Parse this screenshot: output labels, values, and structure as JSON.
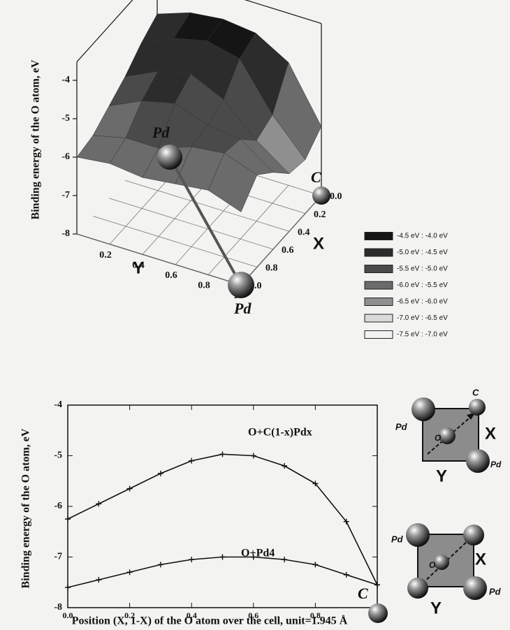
{
  "chart_data": [
    {
      "type": "surface3d",
      "zlabel": "Binding energy of the  O atom, eV",
      "xlabel": "X",
      "ylabel": "Y",
      "xlim": [
        0,
        1
      ],
      "ylim": [
        0,
        1
      ],
      "zlim": [
        -8,
        -4
      ],
      "xticks": [
        {
          "value": 0,
          "label": "0.0"
        },
        0.2,
        0.4,
        0.6,
        0.8,
        {
          "value": 1,
          "label": "1.0"
        }
      ],
      "yticks": [
        0.2,
        0.4,
        0.6,
        0.8,
        {
          "value": 1,
          "label": "1."
        }
      ],
      "zticks": [
        -4,
        -5,
        -6,
        -7,
        -8
      ],
      "grid": true,
      "x": [
        0,
        0.2,
        0.4,
        0.6,
        0.8,
        1
      ],
      "y": [
        0,
        0.2,
        0.4,
        0.6,
        0.8,
        1
      ],
      "z": [
        [
          -4.6,
          -4.3,
          -4.2,
          -4.3,
          -4.8,
          -6.2
        ],
        [
          -4.9,
          -4.5,
          -4.3,
          -4.5,
          -5.7,
          -6.6
        ],
        [
          -5.3,
          -4.9,
          -4.7,
          -5.1,
          -5.9,
          -6.5
        ],
        [
          -5.6,
          -5.2,
          -5.0,
          -5.3,
          -5.4,
          -6.0
        ],
        [
          -5.9,
          -5.7,
          -5.7,
          -5.4,
          -5.3,
          -5.6
        ],
        [
          -6.0,
          -5.9,
          -6.0,
          -5.9,
          -5.8,
          -6.1
        ]
      ],
      "legend": [
        {
          "label": "-4.5 eV : -4.0 eV",
          "color": "#151515",
          "range": [
            -4.5,
            -4.0
          ]
        },
        {
          "label": "-5.0 eV : -4.5 eV",
          "color": "#2c2c2c",
          "range": [
            -5.0,
            -4.5
          ]
        },
        {
          "label": "-5.5 eV : -5.0 eV",
          "color": "#4a4a4a",
          "range": [
            -5.5,
            -5.0
          ]
        },
        {
          "label": "-6.0 eV : -5.5 eV",
          "color": "#6b6b6b",
          "range": [
            -6.0,
            -5.5
          ]
        },
        {
          "label": "-6.5 eV : -6.0 eV",
          "color": "#8f8f8f",
          "range": [
            -6.5,
            -6.0
          ]
        },
        {
          "label": "-7.0 eV : -6.5 eV",
          "color": "#dadada",
          "range": [
            -7.0,
            -6.5
          ]
        },
        {
          "label": "-7.5 eV : -7.0 eV",
          "color": "#f2f2f2",
          "range": [
            -7.5,
            -7.0
          ]
        }
      ],
      "atom_labels": [
        "Pd",
        "C",
        "Pd"
      ]
    },
    {
      "type": "line",
      "xlabel": "Position (X, 1-X) of the O atom over the cell, unit=1.945 Å",
      "ylabel": "Binding energy of the O atom, eV",
      "xlim": [
        0,
        1
      ],
      "ylim": [
        -8,
        -4
      ],
      "xticks": [
        {
          "value": 0,
          "label": "0.0"
        },
        0.2,
        0.4,
        0.6,
        0.8,
        {
          "value": 1,
          "label": "1.0"
        }
      ],
      "yticks": [
        -4,
        -5,
        -6,
        -7,
        -8
      ],
      "x": [
        0,
        0.1,
        0.2,
        0.3,
        0.4,
        0.5,
        0.6,
        0.7,
        0.8,
        0.9,
        1
      ],
      "series": [
        {
          "name": "O+C(1-x)Pdx",
          "color": "#111111",
          "values": [
            -6.25,
            -5.95,
            -5.65,
            -5.35,
            -5.1,
            -4.97,
            -5.0,
            -5.2,
            -5.55,
            -6.3,
            -7.55
          ]
        },
        {
          "name": "O+Pd4",
          "color": "#111111",
          "values": [
            -7.6,
            -7.45,
            -7.3,
            -7.15,
            -7.05,
            -7.0,
            -7.0,
            -7.05,
            -7.15,
            -7.35,
            -7.55
          ]
        }
      ],
      "end_label": "C",
      "inset_a": [
        "Pd",
        "C",
        "O",
        "Pd",
        "X",
        "Y"
      ],
      "inset_b": [
        "Pd",
        "O",
        "X",
        "Y",
        "Pd"
      ]
    }
  ]
}
